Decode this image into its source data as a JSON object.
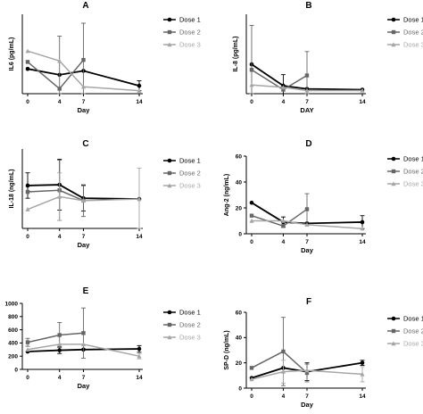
{
  "chart_data": [
    {
      "type": "line",
      "letter": "A",
      "x": [
        0,
        4,
        7,
        14
      ],
      "xticks": [
        "0",
        "4",
        "7",
        "14"
      ],
      "xlabel": "Day",
      "ylabel": "IL6 (pg/mL)",
      "ylim": [
        0,
        800
      ],
      "yticks": [],
      "series": [
        {
          "name": "Dose 1",
          "values": [
            250,
            190,
            230,
            80
          ],
          "err": [
            0,
            0,
            0,
            50
          ],
          "color": "#000000",
          "marker": "circle"
        },
        {
          "name": "Dose 2",
          "values": [
            320,
            50,
            340,
            null
          ],
          "err": [
            0,
            530,
            370,
            0
          ],
          "color": "#666666",
          "marker": "square"
        },
        {
          "name": "Dose 3",
          "values": [
            430,
            330,
            70,
            30
          ],
          "err": [
            0,
            0,
            0,
            0
          ],
          "color": "#a6a6a6",
          "marker": "triangle"
        }
      ]
    },
    {
      "type": "line",
      "letter": "B",
      "x": [
        0,
        4,
        7,
        14
      ],
      "xticks": [
        "0",
        "4",
        "7",
        "14"
      ],
      "xlabel": "DAY",
      "ylabel": "IL-8 (pg/mL)",
      "ylim": [
        0,
        1000
      ],
      "yticks": [],
      "series": [
        {
          "name": "Dose 1",
          "values": [
            370,
            100,
            60,
            50
          ],
          "err": [
            0,
            140,
            0,
            0
          ],
          "color": "#000000",
          "marker": "circle"
        },
        {
          "name": "Dose 2!",
          "values": [
            300,
            50,
            230,
            null
          ],
          "err": [
            560,
            0,
            300,
            0
          ],
          "color": "#666666",
          "marker": "square"
        },
        {
          "name": "Dose 3&",
          "values": [
            110,
            80,
            40,
            40
          ],
          "err": [
            0,
            0,
            0,
            0
          ],
          "color": "#a6a6a6",
          "marker": "triangle"
        }
      ]
    },
    {
      "type": "line",
      "letter": "C",
      "x": [
        0,
        4,
        7,
        14
      ],
      "xticks": [
        "0",
        "4",
        "7",
        "14"
      ],
      "xlabel": "Day",
      "ylabel": "IL-18 (ng/mL)",
      "ylim": [
        0,
        5
      ],
      "yticks": [],
      "series": [
        {
          "name": "Dose 1",
          "values": [
            2.7,
            2.75,
            1.9,
            1.85
          ],
          "err": [
            0.8,
            1.6,
            0.8,
            0
          ],
          "color": "#000000",
          "marker": "circle"
        },
        {
          "name": "Dose 2",
          "values": [
            2.3,
            2.4,
            1.75,
            null
          ],
          "err": [
            0,
            1.9,
            1.0,
            0
          ],
          "color": "#666666",
          "marker": "square"
        },
        {
          "name": "Dose 3",
          "values": [
            1.2,
            2.0,
            1.75,
            1.85
          ],
          "err": [
            0,
            1.5,
            0,
            1.95
          ],
          "color": "#a6a6a6",
          "marker": "triangle"
        }
      ]
    },
    {
      "type": "line",
      "letter": "D",
      "x": [
        0,
        4,
        7,
        14
      ],
      "xticks": [
        "0",
        "4",
        "7",
        "14"
      ],
      "xlabel": "Day",
      "ylabel": "Ang-2 (ng/mL)",
      "ylim": [
        0,
        60
      ],
      "yticks": [
        "0",
        "20",
        "40",
        "60"
      ],
      "series": [
        {
          "name": "Dose 1",
          "values": [
            24,
            9,
            8,
            9
          ],
          "err": [
            0,
            4,
            0,
            5
          ],
          "color": "#000000",
          "marker": "circle"
        },
        {
          "name": "Dose 2!",
          "values": [
            14,
            6,
            19,
            null
          ],
          "err": [
            0,
            0,
            12,
            0
          ],
          "color": "#666666",
          "marker": "square"
        },
        {
          "name": "Dose 3&",
          "values": [
            10,
            10,
            7,
            4
          ],
          "err": [
            0,
            0,
            0,
            0
          ],
          "color": "#a6a6a6",
          "marker": "triangle"
        }
      ]
    },
    {
      "type": "line",
      "letter": "E",
      "x": [
        0,
        4,
        7,
        14
      ],
      "xticks": [
        "0",
        "4",
        "7",
        "14"
      ],
      "xlabel": "Day",
      "ylabel": "ICAM (ng/mL)",
      "ylim": [
        0,
        1000
      ],
      "yticks": [
        "0",
        "200",
        "400",
        "600",
        "800",
        "1000"
      ],
      "series": [
        {
          "name": "Dose 1",
          "values": [
            270,
            290,
            300,
            310
          ],
          "err": [
            0,
            50,
            0,
            50
          ],
          "color": "#000000",
          "marker": "circle"
        },
        {
          "name": "Dose 2",
          "values": [
            410,
            520,
            550,
            null
          ],
          "err": [
            60,
            190,
            380,
            0
          ],
          "color": "#666666",
          "marker": "square"
        },
        {
          "name": "Dose 3",
          "values": [
            300,
            380,
            380,
            200
          ],
          "err": [
            0,
            0,
            0,
            40
          ],
          "color": "#a6a6a6",
          "marker": "triangle"
        }
      ]
    },
    {
      "type": "line",
      "letter": "F",
      "x": [
        0,
        4,
        7,
        14
      ],
      "xticks": [
        "0",
        "4",
        "7",
        "14"
      ],
      "xlabel": "Day",
      "ylabel": "SP-D (ng/mL)",
      "ylim": [
        0,
        60
      ],
      "yticks": [
        "0",
        "20",
        "40",
        "60"
      ],
      "series": [
        {
          "name": "Dose 1&",
          "values": [
            8,
            16,
            13,
            20
          ],
          "err": [
            0,
            0,
            7,
            2
          ],
          "color": "#000000",
          "marker": "circle"
        },
        {
          "name": "Dose 2!",
          "values": [
            16,
            29,
            12,
            null
          ],
          "err": [
            0,
            27,
            7,
            0
          ],
          "color": "#666666",
          "marker": "square"
        },
        {
          "name": "Dose 3*",
          "values": [
            7,
            13,
            14,
            11
          ],
          "err": [
            0,
            9,
            0,
            6
          ],
          "color": "#a6a6a6",
          "marker": "triangle"
        }
      ]
    }
  ]
}
